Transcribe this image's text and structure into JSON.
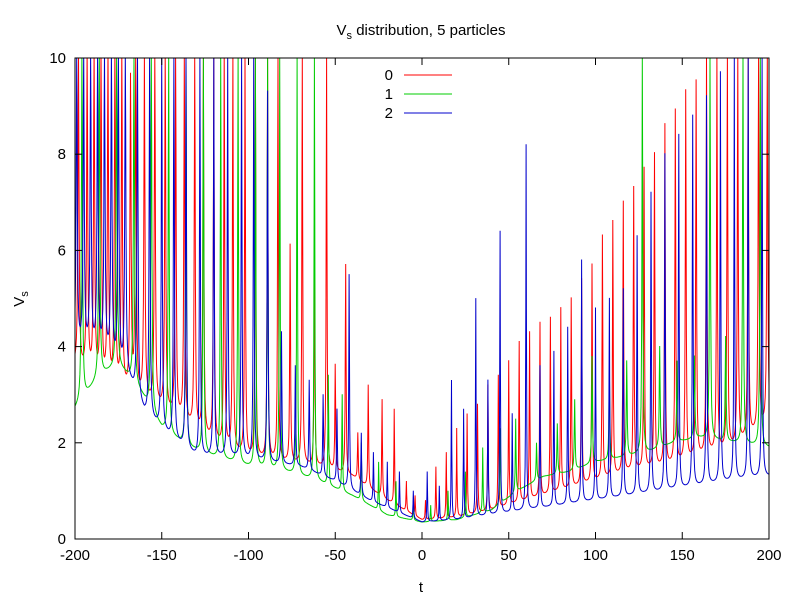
{
  "chart_data": {
    "type": "line",
    "title": "Vs distribution, 5 particles",
    "title_parts": {
      "pre": "V",
      "sub": "s",
      "post": " distribution, 5 particles"
    },
    "xlabel": "t",
    "ylabel": "Vs",
    "ylabel_parts": {
      "pre": "V",
      "sub": "s"
    },
    "xlim": [
      -200,
      200
    ],
    "ylim": [
      0,
      10
    ],
    "xticks": [
      -200,
      -150,
      -100,
      -50,
      0,
      50,
      100,
      150,
      200
    ],
    "yticks": [
      0,
      2,
      4,
      6,
      8,
      10
    ],
    "grid": false,
    "legend_position": "top-center",
    "series": [
      {
        "name": "0",
        "color": "#ff0000",
        "baseline": [
          [
            -200,
            3.6
          ],
          [
            -180,
            3.2
          ],
          [
            -160,
            2.9
          ],
          [
            -140,
            2.5
          ],
          [
            -120,
            2.0
          ],
          [
            -100,
            1.7
          ],
          [
            -80,
            1.6
          ],
          [
            -60,
            1.5
          ],
          [
            -40,
            1.3
          ],
          [
            -20,
            0.8
          ],
          [
            0,
            0.4
          ],
          [
            20,
            0.45
          ],
          [
            40,
            0.6
          ],
          [
            60,
            0.8
          ],
          [
            80,
            1.0
          ],
          [
            100,
            1.2
          ],
          [
            120,
            1.4
          ],
          [
            140,
            1.5
          ],
          [
            160,
            1.7
          ],
          [
            180,
            1.9
          ],
          [
            200,
            2.4
          ]
        ],
        "peaks": [
          [
            -198,
            10
          ],
          [
            -193,
            10
          ],
          [
            -189,
            10
          ],
          [
            -185,
            10
          ],
          [
            -181,
            10
          ],
          [
            -177,
            10
          ],
          [
            -173,
            10
          ],
          [
            -168,
            9.5
          ],
          [
            -165,
            10
          ],
          [
            -160,
            10
          ],
          [
            -154,
            10
          ],
          [
            -148,
            10
          ],
          [
            -142,
            10
          ],
          [
            -137,
            10
          ],
          [
            -131,
            10
          ],
          [
            -126,
            10
          ],
          [
            -120,
            10
          ],
          [
            -114,
            10
          ],
          [
            -109,
            10
          ],
          [
            -102,
            10
          ],
          [
            -96,
            10
          ],
          [
            -89,
            10
          ],
          [
            -83,
            10
          ],
          [
            -76,
            6.1
          ],
          [
            -69,
            10
          ],
          [
            -62,
            5.9
          ],
          [
            -55,
            10
          ],
          [
            -50,
            3.6
          ],
          [
            -44,
            5.7
          ],
          [
            -37,
            2.2
          ],
          [
            -31,
            3.2
          ],
          [
            -23,
            2.9
          ],
          [
            -16,
            2.7
          ],
          [
            -9,
            1.2
          ],
          [
            -4,
            0.9
          ],
          [
            2,
            0.8
          ],
          [
            8,
            1.5
          ],
          [
            14,
            1.8
          ],
          [
            20,
            2.3
          ],
          [
            26,
            2.6
          ],
          [
            32,
            2.8
          ],
          [
            38,
            3.2
          ],
          [
            44,
            3.4
          ],
          [
            50,
            3.7
          ],
          [
            56,
            4.1
          ],
          [
            62,
            4.3
          ],
          [
            68,
            4.5
          ],
          [
            74,
            4.6
          ],
          [
            80,
            4.8
          ],
          [
            86,
            5.0
          ],
          [
            92,
            5.4
          ],
          [
            98,
            5.7
          ],
          [
            104,
            6.3
          ],
          [
            110,
            6.6
          ],
          [
            116,
            7.0
          ],
          [
            122,
            7.3
          ],
          [
            128,
            7.7
          ],
          [
            134,
            8.0
          ],
          [
            140,
            8.6
          ],
          [
            146,
            8.9
          ],
          [
            152,
            9.3
          ],
          [
            158,
            9.5
          ],
          [
            164,
            10
          ],
          [
            170,
            10
          ],
          [
            176,
            10
          ],
          [
            182,
            10
          ],
          [
            188,
            10
          ],
          [
            194,
            10
          ],
          [
            199,
            10
          ]
        ]
      },
      {
        "name": "1",
        "color": "#00cc00",
        "baseline": [
          [
            -200,
            2.7
          ],
          [
            -185,
            3.4
          ],
          [
            -175,
            3.6
          ],
          [
            -165,
            3.2
          ],
          [
            -150,
            2.3
          ],
          [
            -135,
            1.9
          ],
          [
            -120,
            1.7
          ],
          [
            -100,
            1.5
          ],
          [
            -80,
            1.4
          ],
          [
            -60,
            1.2
          ],
          [
            -40,
            0.9
          ],
          [
            -20,
            0.5
          ],
          [
            0,
            0.35
          ],
          [
            20,
            0.4
          ],
          [
            40,
            0.6
          ],
          [
            55,
            1.0
          ],
          [
            70,
            1.3
          ],
          [
            85,
            1.4
          ],
          [
            100,
            1.6
          ],
          [
            115,
            1.7
          ],
          [
            130,
            1.8
          ],
          [
            145,
            2.0
          ],
          [
            160,
            2.1
          ],
          [
            180,
            2.0
          ],
          [
            200,
            1.9
          ]
        ],
        "peaks": [
          [
            -196,
            10
          ],
          [
            -186,
            10
          ],
          [
            -176,
            10
          ],
          [
            -166,
            10
          ],
          [
            -156,
            10
          ],
          [
            -146,
            10
          ],
          [
            -136,
            10
          ],
          [
            -126,
            10
          ],
          [
            -116,
            10
          ],
          [
            -106,
            10
          ],
          [
            -96,
            10
          ],
          [
            -89,
            10
          ],
          [
            -82,
            10
          ],
          [
            -72,
            10
          ],
          [
            -62,
            10
          ],
          [
            -54,
            3.4
          ],
          [
            -46,
            3.0
          ],
          [
            -35,
            2.0
          ],
          [
            -25,
            1.6
          ],
          [
            -15,
            1.2
          ],
          [
            -5,
            0.8
          ],
          [
            5,
            0.7
          ],
          [
            15,
            1.0
          ],
          [
            25,
            1.4
          ],
          [
            35,
            1.9
          ],
          [
            45,
            2.3
          ],
          [
            54,
            2.5
          ],
          [
            66,
            2.0
          ],
          [
            78,
            2.4
          ],
          [
            88,
            2.9
          ],
          [
            98,
            3.8
          ],
          [
            108,
            3.5
          ],
          [
            118,
            3.7
          ],
          [
            127,
            10
          ],
          [
            137,
            4.0
          ],
          [
            147,
            3.7
          ],
          [
            157,
            3.8
          ],
          [
            166,
            10
          ],
          [
            175,
            4.2
          ],
          [
            185,
            10
          ],
          [
            195,
            10
          ]
        ]
      },
      {
        "name": "2",
        "color": "#0000cc",
        "baseline": [
          [
            -200,
            4.0
          ],
          [
            -185,
            3.9
          ],
          [
            -170,
            3.4
          ],
          [
            -160,
            2.6
          ],
          [
            -145,
            2.1
          ],
          [
            -130,
            1.7
          ],
          [
            -110,
            1.7
          ],
          [
            -90,
            1.6
          ],
          [
            -70,
            1.5
          ],
          [
            -50,
            1.2
          ],
          [
            -30,
            0.8
          ],
          [
            -10,
            0.5
          ],
          [
            0,
            0.35
          ],
          [
            20,
            0.4
          ],
          [
            40,
            0.5
          ],
          [
            60,
            0.6
          ],
          [
            80,
            0.7
          ],
          [
            100,
            0.8
          ],
          [
            120,
            0.9
          ],
          [
            140,
            1.0
          ],
          [
            160,
            1.1
          ],
          [
            180,
            1.2
          ],
          [
            200,
            1.3
          ]
        ],
        "peaks": [
          [
            -199,
            10
          ],
          [
            -195,
            10
          ],
          [
            -191,
            10
          ],
          [
            -187,
            10
          ],
          [
            -183,
            10
          ],
          [
            -179,
            10
          ],
          [
            -175,
            10
          ],
          [
            -171,
            10
          ],
          [
            -164,
            10
          ],
          [
            -157,
            10
          ],
          [
            -150,
            10
          ],
          [
            -143,
            10
          ],
          [
            -136,
            10
          ],
          [
            -128,
            10
          ],
          [
            -120,
            10
          ],
          [
            -112,
            10
          ],
          [
            -104,
            10
          ],
          [
            -97,
            10
          ],
          [
            -89,
            9.3
          ],
          [
            -81,
            4.3
          ],
          [
            -73,
            3.6
          ],
          [
            -65,
            3.3
          ],
          [
            -57,
            3.0
          ],
          [
            -49,
            2.7
          ],
          [
            -42,
            5.5
          ],
          [
            -35,
            2.2
          ],
          [
            -28,
            1.8
          ],
          [
            -20,
            1.6
          ],
          [
            -13,
            1.4
          ],
          [
            -5,
            1.0
          ],
          [
            3,
            1.4
          ],
          [
            10,
            1.1
          ],
          [
            17,
            3.3
          ],
          [
            24,
            2.7
          ],
          [
            31,
            5.0
          ],
          [
            38,
            3.3
          ],
          [
            45,
            6.4
          ],
          [
            52,
            2.6
          ],
          [
            60,
            8.2
          ],
          [
            68,
            3.6
          ],
          [
            76,
            3.9
          ],
          [
            84,
            4.4
          ],
          [
            92,
            5.8
          ],
          [
            100,
            4.8
          ],
          [
            108,
            5.0
          ],
          [
            116,
            5.2
          ],
          [
            124,
            6.3
          ],
          [
            132,
            7.2
          ],
          [
            140,
            8.0
          ],
          [
            148,
            8.4
          ],
          [
            156,
            8.8
          ],
          [
            164,
            9.2
          ],
          [
            172,
            9.7
          ],
          [
            180,
            10
          ],
          [
            188,
            10
          ],
          [
            196,
            10
          ]
        ]
      }
    ]
  }
}
